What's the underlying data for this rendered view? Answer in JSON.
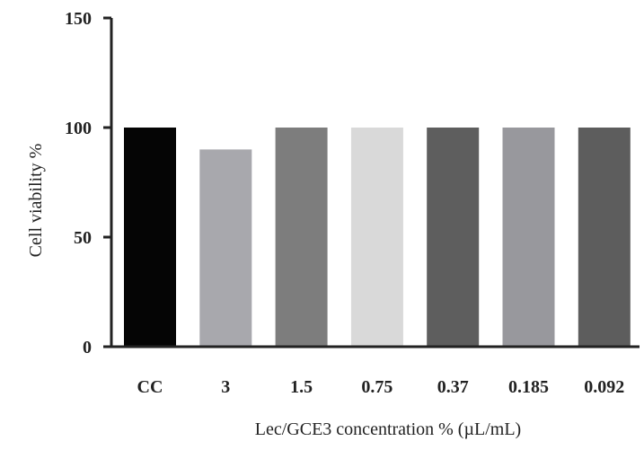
{
  "chart_data": {
    "type": "bar",
    "title": "",
    "xlabel": "Lec/GCE3 concentration % (µL/mL)",
    "ylabel": "Cell viability %",
    "ylim": [
      0,
      150
    ],
    "yticks": [
      0,
      50,
      100,
      150
    ],
    "ytick_labels": [
      "0",
      "50",
      "100",
      "150"
    ],
    "grid": false,
    "legend": "none",
    "categories": [
      "CC",
      "3",
      "1.5",
      "0.75",
      "0.37",
      "0.185",
      "0.092"
    ],
    "values": [
      100,
      90,
      100,
      100,
      100,
      100,
      100
    ],
    "bar_colors": [
      "#050505",
      "#a8a8ad",
      "#7d7d7d",
      "#d9d9d9",
      "#5e5e5e",
      "#98989d",
      "#5d5d5d"
    ]
  }
}
